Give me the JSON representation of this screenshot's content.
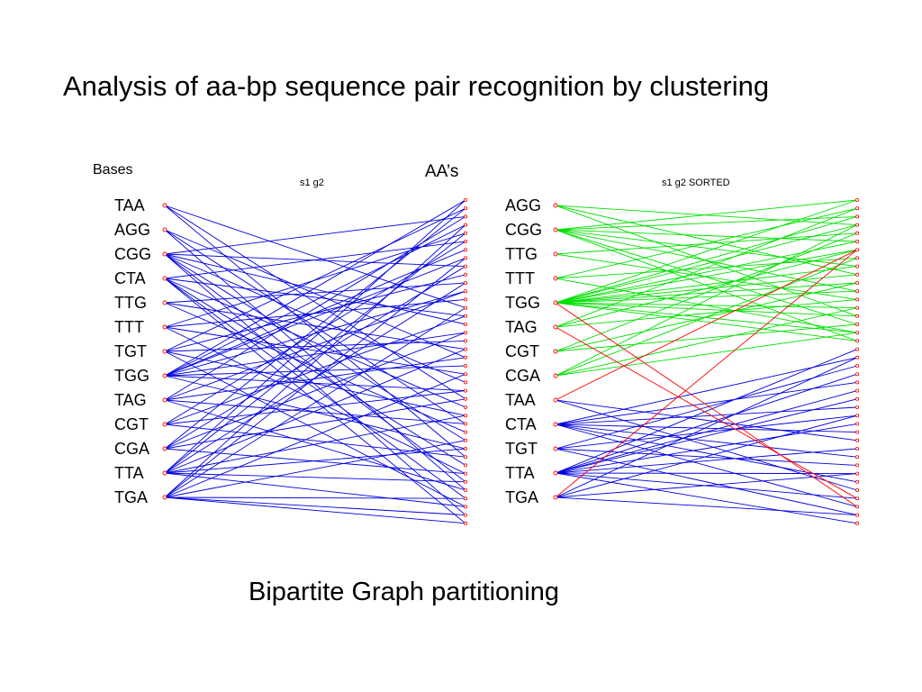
{
  "title": "Analysis of aa-bp sequence pair recognition by clustering",
  "caption": "Bipartite Graph partitioning",
  "label_bases": "Bases",
  "label_aas": "AA’s",
  "colors": {
    "blue": "#0000e0",
    "green": "#00e000",
    "red": "#ff0000",
    "node": "#ff0000"
  },
  "graphs": [
    {
      "plot_title": "s1 g2",
      "bases": [
        "TAA",
        "AGG",
        "CGG",
        "CTA",
        "TTG",
        "TTT",
        "TGT",
        "TGG",
        "TAG",
        "CGT",
        "CGA",
        "TTA",
        "TGA"
      ],
      "aa_count": 40,
      "edges": [
        [
          0,
          13,
          "blue"
        ],
        [
          0,
          24,
          "blue"
        ],
        [
          0,
          31,
          "blue"
        ],
        [
          1,
          19,
          "blue"
        ],
        [
          1,
          27,
          "blue"
        ],
        [
          1,
          35,
          "blue"
        ],
        [
          2,
          2,
          "blue"
        ],
        [
          2,
          8,
          "blue"
        ],
        [
          2,
          15,
          "blue"
        ],
        [
          2,
          22,
          "blue"
        ],
        [
          2,
          29,
          "blue"
        ],
        [
          2,
          34,
          "blue"
        ],
        [
          2,
          38,
          "blue"
        ],
        [
          3,
          5,
          "blue"
        ],
        [
          3,
          14,
          "blue"
        ],
        [
          3,
          25,
          "blue"
        ],
        [
          3,
          32,
          "blue"
        ],
        [
          3,
          36,
          "blue"
        ],
        [
          3,
          39,
          "blue"
        ],
        [
          4,
          10,
          "blue"
        ],
        [
          4,
          18,
          "blue"
        ],
        [
          4,
          28,
          "blue"
        ],
        [
          5,
          4,
          "blue"
        ],
        [
          5,
          12,
          "blue"
        ],
        [
          5,
          21,
          "blue"
        ],
        [
          5,
          33,
          "blue"
        ],
        [
          6,
          1,
          "blue"
        ],
        [
          6,
          9,
          "blue"
        ],
        [
          6,
          17,
          "blue"
        ],
        [
          6,
          26,
          "blue"
        ],
        [
          6,
          37,
          "blue"
        ],
        [
          7,
          0,
          "blue"
        ],
        [
          7,
          3,
          "blue"
        ],
        [
          7,
          6,
          "blue"
        ],
        [
          7,
          7,
          "blue"
        ],
        [
          7,
          11,
          "blue"
        ],
        [
          7,
          16,
          "blue"
        ],
        [
          7,
          20,
          "blue"
        ],
        [
          7,
          23,
          "blue"
        ],
        [
          7,
          30,
          "blue"
        ],
        [
          8,
          2,
          "blue"
        ],
        [
          8,
          11,
          "blue"
        ],
        [
          8,
          19,
          "blue"
        ],
        [
          8,
          27,
          "blue"
        ],
        [
          8,
          35,
          "blue"
        ],
        [
          9,
          5,
          "blue"
        ],
        [
          9,
          14,
          "blue"
        ],
        [
          9,
          23,
          "blue"
        ],
        [
          9,
          31,
          "blue"
        ],
        [
          10,
          1,
          "blue"
        ],
        [
          10,
          8,
          "blue"
        ],
        [
          10,
          16,
          "blue"
        ],
        [
          10,
          24,
          "blue"
        ],
        [
          10,
          33,
          "blue"
        ],
        [
          11,
          0,
          "blue"
        ],
        [
          11,
          4,
          "blue"
        ],
        [
          11,
          10,
          "blue"
        ],
        [
          11,
          18,
          "blue"
        ],
        [
          11,
          26,
          "blue"
        ],
        [
          11,
          30,
          "blue"
        ],
        [
          11,
          34,
          "blue"
        ],
        [
          11,
          37,
          "blue"
        ],
        [
          12,
          3,
          "blue"
        ],
        [
          12,
          7,
          "blue"
        ],
        [
          12,
          13,
          "blue"
        ],
        [
          12,
          21,
          "blue"
        ],
        [
          12,
          29,
          "blue"
        ],
        [
          12,
          36,
          "blue"
        ],
        [
          12,
          38,
          "blue"
        ],
        [
          12,
          39,
          "blue"
        ]
      ]
    },
    {
      "plot_title": "s1 g2 SORTED",
      "bases": [
        "AGG",
        "CGG",
        "TTG",
        "TTT",
        "TGG",
        "TAG",
        "CGT",
        "CGA",
        "TAA",
        "CTA",
        "TGT",
        "TTA",
        "TGA"
      ],
      "aa_count": 40,
      "edges": [
        [
          0,
          3,
          "green"
        ],
        [
          0,
          9,
          "green"
        ],
        [
          0,
          14,
          "green"
        ],
        [
          1,
          0,
          "green"
        ],
        [
          1,
          2,
          "green"
        ],
        [
          1,
          5,
          "green"
        ],
        [
          1,
          8,
          "green"
        ],
        [
          1,
          11,
          "green"
        ],
        [
          1,
          15,
          "green"
        ],
        [
          1,
          17,
          "green"
        ],
        [
          2,
          4,
          "green"
        ],
        [
          2,
          12,
          "green"
        ],
        [
          3,
          1,
          "green"
        ],
        [
          3,
          7,
          "green"
        ],
        [
          3,
          16,
          "green"
        ],
        [
          4,
          0,
          "green"
        ],
        [
          4,
          2,
          "green"
        ],
        [
          4,
          3,
          "green"
        ],
        [
          4,
          5,
          "green"
        ],
        [
          4,
          6,
          "green"
        ],
        [
          4,
          8,
          "green"
        ],
        [
          4,
          9,
          "green"
        ],
        [
          4,
          10,
          "green"
        ],
        [
          4,
          11,
          "green"
        ],
        [
          4,
          13,
          "green"
        ],
        [
          4,
          14,
          "green"
        ],
        [
          4,
          16,
          "green"
        ],
        [
          4,
          17,
          "green"
        ],
        [
          5,
          1,
          "green"
        ],
        [
          5,
          6,
          "green"
        ],
        [
          5,
          12,
          "green"
        ],
        [
          6,
          4,
          "green"
        ],
        [
          6,
          10,
          "green"
        ],
        [
          6,
          15,
          "green"
        ],
        [
          7,
          3,
          "green"
        ],
        [
          7,
          7,
          "green"
        ],
        [
          7,
          13,
          "green"
        ],
        [
          7,
          16,
          "green"
        ],
        [
          8,
          29,
          "blue"
        ],
        [
          8,
          35,
          "blue"
        ],
        [
          8,
          6,
          "red"
        ],
        [
          9,
          19,
          "blue"
        ],
        [
          9,
          22,
          "blue"
        ],
        [
          9,
          25,
          "blue"
        ],
        [
          9,
          28,
          "blue"
        ],
        [
          9,
          31,
          "blue"
        ],
        [
          9,
          34,
          "blue"
        ],
        [
          9,
          37,
          "blue"
        ],
        [
          10,
          20,
          "blue"
        ],
        [
          10,
          26,
          "blue"
        ],
        [
          10,
          32,
          "blue"
        ],
        [
          10,
          38,
          "blue"
        ],
        [
          11,
          18,
          "blue"
        ],
        [
          11,
          21,
          "blue"
        ],
        [
          11,
          23,
          "blue"
        ],
        [
          11,
          24,
          "blue"
        ],
        [
          11,
          27,
          "blue"
        ],
        [
          11,
          30,
          "blue"
        ],
        [
          11,
          33,
          "blue"
        ],
        [
          11,
          36,
          "blue"
        ],
        [
          11,
          39,
          "blue"
        ],
        [
          12,
          19,
          "blue"
        ],
        [
          12,
          26,
          "blue"
        ],
        [
          12,
          33,
          "blue"
        ],
        [
          12,
          38,
          "blue"
        ],
        [
          12,
          6,
          "red"
        ],
        [
          5,
          36,
          "red"
        ],
        [
          4,
          37,
          "red"
        ]
      ]
    }
  ]
}
